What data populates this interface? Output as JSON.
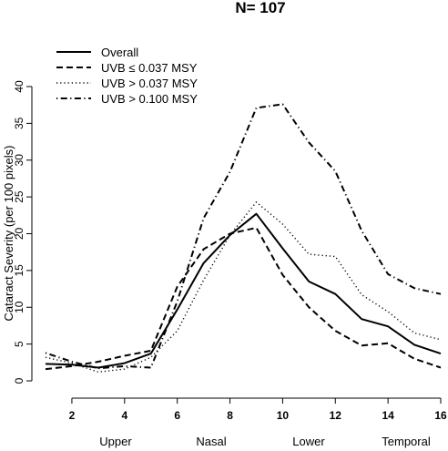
{
  "chart_data": {
    "type": "line",
    "title": "N= 107",
    "ylabel": "Cataract Severity (per 100 pixels)",
    "xlabel": "",
    "x": [
      1,
      2,
      3,
      4,
      5,
      6,
      7,
      8,
      9,
      10,
      11,
      12,
      13,
      14,
      15,
      16
    ],
    "xlim": [
      1,
      16
    ],
    "ylim": [
      0,
      40
    ],
    "x_ticks": [
      "2",
      "4",
      "6",
      "8",
      "10",
      "12",
      "14",
      "16"
    ],
    "y_ticks": [
      "0",
      "5",
      "10",
      "15",
      "20",
      "25",
      "30",
      "35",
      "40"
    ],
    "region_labels": [
      "Upper",
      "Nasal",
      "Lower",
      "Temporal"
    ],
    "legend_position": "top-left",
    "grid": false,
    "series": [
      {
        "name": "Overall",
        "line_style": "solid",
        "values": [
          2.3,
          2.2,
          1.8,
          2.4,
          3.7,
          9.7,
          16.0,
          19.8,
          22.7,
          18.0,
          13.5,
          11.8,
          8.4,
          7.4,
          4.9,
          3.7
        ]
      },
      {
        "name": "UVB ≤ 0.037 MSY",
        "line_style": "dashed",
        "values": [
          1.6,
          2.0,
          2.6,
          3.4,
          4.1,
          12.8,
          17.9,
          20.0,
          20.8,
          14.4,
          10.0,
          6.8,
          4.8,
          5.1,
          3.0,
          1.8
        ]
      },
      {
        "name": "UVB > 0.037 MSY",
        "line_style": "dotted",
        "values": [
          3.2,
          2.4,
          1.2,
          1.6,
          3.2,
          6.8,
          13.7,
          19.8,
          24.3,
          21.3,
          17.2,
          16.9,
          11.7,
          9.4,
          6.5,
          5.6
        ]
      },
      {
        "name": "UVB > 0.100 MSY",
        "line_style": "dotdash",
        "values": [
          3.8,
          2.6,
          1.7,
          2.0,
          1.8,
          10.8,
          22.1,
          28.4,
          37.1,
          37.6,
          32.4,
          28.5,
          20.4,
          14.5,
          12.6,
          11.8
        ]
      }
    ]
  }
}
